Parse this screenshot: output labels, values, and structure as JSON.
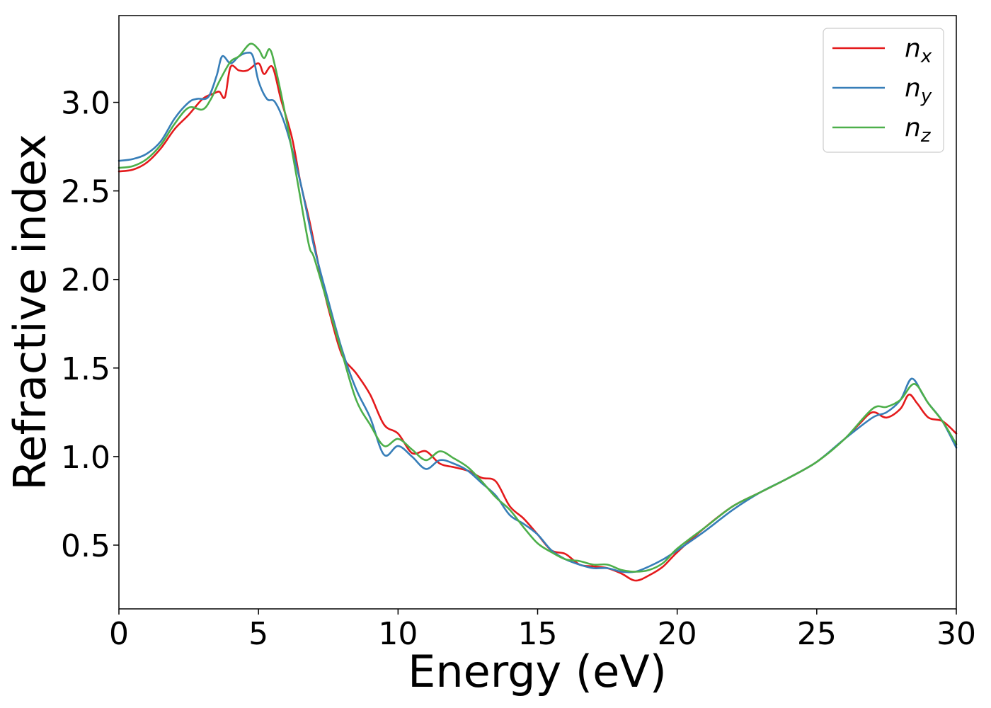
{
  "chart_data": {
    "type": "line",
    "title": "",
    "xlabel": "Energy (eV)",
    "ylabel": "Refractive index",
    "xlim": [
      0,
      30
    ],
    "ylim": [
      0.14,
      3.49
    ],
    "xticks": [
      0,
      5,
      10,
      15,
      20,
      25,
      30
    ],
    "xtick_labels": [
      "0",
      "5",
      "10",
      "15",
      "20",
      "25",
      "30"
    ],
    "yticks": [
      0.5,
      1.0,
      1.5,
      2.0,
      2.5,
      3.0
    ],
    "ytick_labels": [
      "0.5",
      "1.0",
      "1.5",
      "2.0",
      "2.5",
      "3.0"
    ],
    "grid": false,
    "legend_position": "top-right",
    "series": [
      {
        "name": "n_x",
        "legend_main": "n",
        "legend_sub": "x",
        "color": "#e41a1c",
        "x": [
          0,
          0.5,
          1,
          1.5,
          2,
          2.5,
          3,
          3.4,
          3.6,
          3.8,
          4,
          4.3,
          4.6,
          5,
          5.2,
          5.5,
          5.8,
          6.2,
          6.5,
          6.8,
          7,
          7.3,
          7.6,
          8,
          8.5,
          9,
          9.5,
          10,
          10.5,
          11,
          11.5,
          12,
          12.5,
          13,
          13.5,
          14,
          14.5,
          15,
          15.5,
          16,
          16.5,
          17,
          17.5,
          18,
          18.5,
          19,
          19.5,
          20,
          21,
          22,
          23,
          24,
          25,
          26,
          26.5,
          27,
          27.5,
          28,
          28.3,
          28.6,
          29,
          29.5,
          30
        ],
        "y": [
          2.61,
          2.62,
          2.66,
          2.74,
          2.85,
          2.93,
          3.02,
          3.05,
          3.06,
          3.03,
          3.2,
          3.18,
          3.18,
          3.22,
          3.16,
          3.2,
          3.02,
          2.8,
          2.55,
          2.35,
          2.2,
          1.97,
          1.78,
          1.57,
          1.47,
          1.35,
          1.18,
          1.13,
          1.02,
          1.03,
          0.96,
          0.94,
          0.92,
          0.88,
          0.86,
          0.72,
          0.65,
          0.56,
          0.47,
          0.45,
          0.39,
          0.38,
          0.37,
          0.34,
          0.3,
          0.33,
          0.38,
          0.46,
          0.6,
          0.72,
          0.8,
          0.88,
          0.97,
          1.1,
          1.18,
          1.25,
          1.22,
          1.27,
          1.35,
          1.3,
          1.22,
          1.2,
          1.13
        ]
      },
      {
        "name": "n_y",
        "legend_main": "n",
        "legend_sub": "y",
        "color": "#377eb8",
        "x": [
          0,
          0.5,
          1,
          1.5,
          2,
          2.5,
          2.8,
          3.2,
          3.5,
          3.7,
          4,
          4.3,
          4.6,
          4.8,
          5,
          5.3,
          5.6,
          6,
          6.5,
          7,
          7.5,
          8,
          8.5,
          9,
          9.5,
          10,
          10.5,
          11,
          11.5,
          12,
          12.5,
          13,
          13.5,
          14,
          14.5,
          15,
          15.5,
          16,
          16.5,
          17,
          17.5,
          18,
          18.5,
          19,
          19.5,
          20,
          21,
          22,
          23,
          24,
          25,
          26,
          27,
          27.5,
          28,
          28.4,
          28.8,
          29,
          29.5,
          30
        ],
        "y": [
          2.67,
          2.68,
          2.71,
          2.78,
          2.91,
          3.0,
          3.02,
          3.03,
          3.15,
          3.26,
          3.22,
          3.26,
          3.28,
          3.26,
          3.12,
          3.02,
          3.0,
          2.85,
          2.55,
          2.18,
          1.88,
          1.6,
          1.38,
          1.22,
          1.01,
          1.06,
          1.0,
          0.93,
          0.98,
          0.96,
          0.92,
          0.85,
          0.78,
          0.67,
          0.62,
          0.56,
          0.47,
          0.42,
          0.39,
          0.37,
          0.37,
          0.35,
          0.35,
          0.38,
          0.42,
          0.47,
          0.58,
          0.7,
          0.8,
          0.88,
          0.97,
          1.1,
          1.22,
          1.25,
          1.32,
          1.44,
          1.35,
          1.3,
          1.2,
          1.05
        ]
      },
      {
        "name": "n_z",
        "legend_main": "n",
        "legend_sub": "z",
        "color": "#4daf4a",
        "x": [
          0,
          0.5,
          1,
          1.5,
          2,
          2.5,
          3,
          3.3,
          3.6,
          4,
          4.3,
          4.7,
          5,
          5.2,
          5.4,
          5.6,
          6,
          6.4,
          6.8,
          7,
          7.5,
          8,
          8.5,
          9,
          9.5,
          10,
          10.5,
          11,
          11.5,
          12,
          12.5,
          13,
          13.5,
          14,
          14.5,
          15,
          15.5,
          16,
          16.5,
          17,
          17.5,
          18,
          18.5,
          19,
          19.5,
          20,
          21,
          22,
          23,
          24,
          25,
          26,
          27,
          27.5,
          28,
          28.5,
          29,
          29.5,
          30
        ],
        "y": [
          2.63,
          2.64,
          2.68,
          2.76,
          2.88,
          2.97,
          2.96,
          3.02,
          3.12,
          3.23,
          3.26,
          3.33,
          3.3,
          3.25,
          3.3,
          3.2,
          2.9,
          2.55,
          2.2,
          2.12,
          1.85,
          1.58,
          1.32,
          1.18,
          1.06,
          1.1,
          1.04,
          0.98,
          1.03,
          0.99,
          0.94,
          0.86,
          0.77,
          0.7,
          0.6,
          0.51,
          0.46,
          0.42,
          0.41,
          0.39,
          0.39,
          0.36,
          0.35,
          0.36,
          0.4,
          0.48,
          0.6,
          0.72,
          0.8,
          0.88,
          0.97,
          1.1,
          1.27,
          1.28,
          1.32,
          1.41,
          1.3,
          1.2,
          1.07
        ]
      }
    ]
  }
}
